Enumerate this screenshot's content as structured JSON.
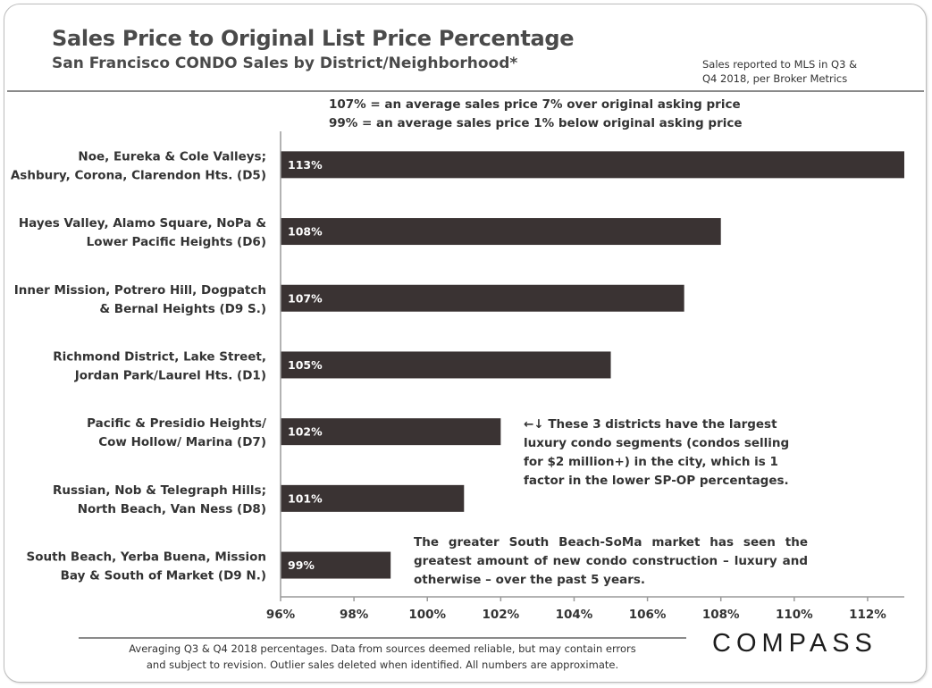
{
  "header": {
    "title": "Sales Price to Original List Price Percentage",
    "subtitle": "San Francisco CONDO Sales by District/Neighborhood*",
    "source_lines": [
      "Sales reported to MLS in Q3 &",
      "Q4 2018, per Broker Metrics"
    ]
  },
  "legend_note": {
    "line1": "107% = an average sales price 7% over original asking price",
    "line2": "99% = an average sales price 1% below original asking price"
  },
  "annotations": {
    "luxury": "←↓ These 3 districts have the largest luxury condo segments (condos selling for $2 million+) in the city, which is 1 factor in the lower SP-OP percentages.",
    "soma": "The greater South Beach-SoMa market has seen the greatest amount of new condo construction – luxury and otherwise – over the past 5 years."
  },
  "footer": {
    "line1": "Averaging Q3 & Q4 2018 percentages. Data from sources deemed reliable, but may contain errors",
    "line2": "and subject to revision. Outlier sales deleted  when identified. All numbers are approximate."
  },
  "brand": {
    "logo_text": "COMPASS"
  },
  "colors": {
    "bar": "#3a3333",
    "axis": "#9a9a9a",
    "label_text": "#ffffff"
  },
  "chart_data": {
    "type": "bar",
    "orientation": "horizontal",
    "categories": [
      [
        "Noe, Eureka & Cole Valleys;",
        "Ashbury, Corona, Clarendon Hts. (D5)"
      ],
      [
        "Hayes Valley, Alamo Square, NoPa &",
        "Lower Pacific Heights (D6)"
      ],
      [
        "Inner Mission, Potrero Hill, Dogpatch",
        "& Bernal Heights (D9 S.)"
      ],
      [
        "Richmond District, Lake Street,",
        "Jordan Park/Laurel Hts. (D1)"
      ],
      [
        "Pacific & Presidio Heights/",
        "Cow Hollow/ Marina (D7)"
      ],
      [
        "Russian, Nob & Telegraph Hills;",
        "North Beach, Van Ness (D8)"
      ],
      [
        "South Beach, Yerba Buena, Mission",
        "Bay & South of Market (D9 N.)"
      ]
    ],
    "values": [
      113,
      108,
      107,
      105,
      102,
      101,
      99
    ],
    "data_labels": [
      "113%",
      "108%",
      "107%",
      "105%",
      "102%",
      "101%",
      "99%"
    ],
    "xlim": [
      96,
      113
    ],
    "xticks": [
      96,
      98,
      100,
      102,
      104,
      106,
      108,
      110,
      112
    ],
    "xtick_labels": [
      "96%",
      "98%",
      "100%",
      "102%",
      "104%",
      "106%",
      "108%",
      "110%",
      "112%"
    ],
    "grid": false
  }
}
